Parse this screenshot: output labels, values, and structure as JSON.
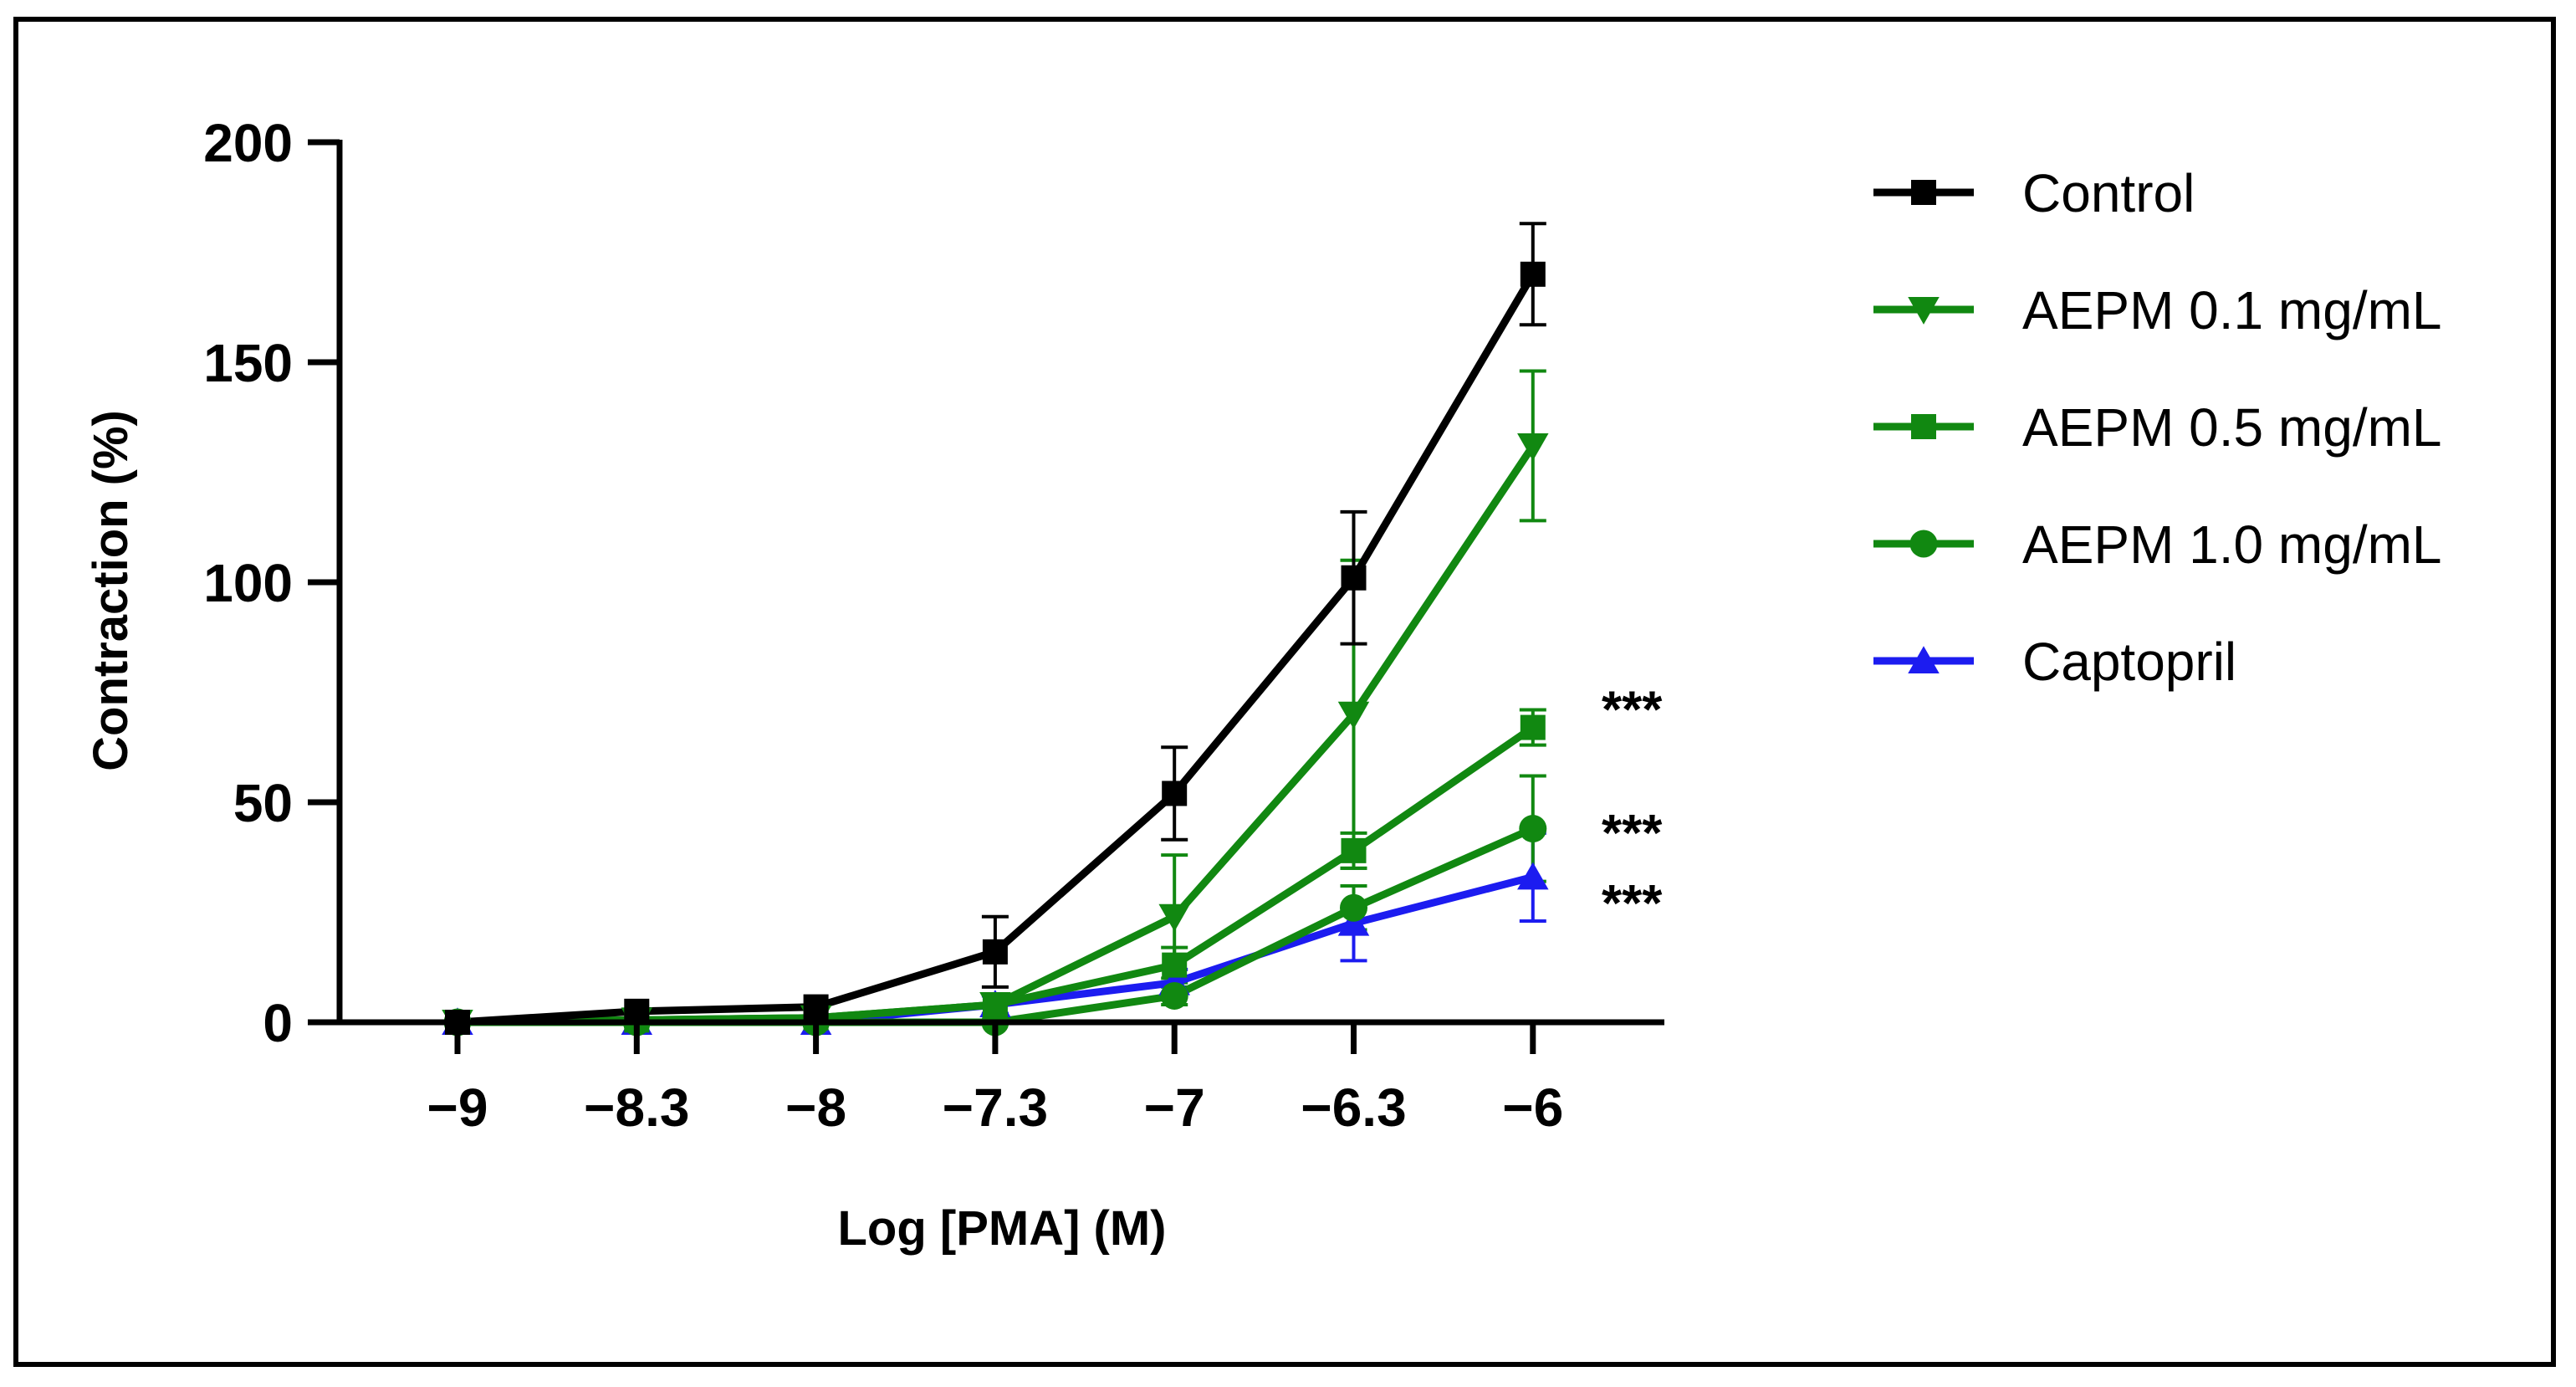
{
  "chart_data": {
    "type": "line",
    "xlabel": "Log [PMA] (M)",
    "ylabel": "Contraction (%)",
    "ylim": [
      0,
      200
    ],
    "yticks": [
      0,
      50,
      100,
      150,
      200
    ],
    "categories": [
      "−9",
      "−8.3",
      "−8",
      "−7.3",
      "−7",
      "−6.3",
      "−6"
    ],
    "x": [
      -9,
      -8.3,
      -8,
      -7.3,
      -7,
      -6.3,
      -6
    ],
    "legend_position": "right",
    "grid": false,
    "series": [
      {
        "name": "Control",
        "color": "#000000",
        "marker": "square",
        "values": [
          0,
          2.5,
          3.5,
          16,
          52,
          101,
          170
        ],
        "errors": [
          0,
          0,
          0,
          8,
          10.5,
          15,
          11.5
        ]
      },
      {
        "name": "AEPM 0.1 mg/mL",
        "color": "#118811",
        "marker": "triangle-down",
        "values": [
          0,
          0.5,
          1,
          4,
          24,
          70,
          131
        ],
        "errors": [
          0,
          0,
          0,
          0,
          14,
          35,
          17
        ]
      },
      {
        "name": "AEPM 0.5 mg/mL",
        "color": "#118811",
        "marker": "square",
        "values": [
          0,
          0.5,
          1,
          4,
          13,
          39,
          67
        ],
        "errors": [
          0,
          0,
          0,
          0,
          4,
          4,
          4
        ]
      },
      {
        "name": "AEPM 1.0 mg/mL",
        "color": "#118811",
        "marker": "circle",
        "values": [
          0,
          0,
          0,
          0,
          6,
          26,
          44
        ],
        "errors": [
          0,
          0,
          0,
          0,
          2,
          5,
          12
        ]
      },
      {
        "name": "Captopril",
        "color": "#1c1cf0",
        "marker": "triangle-up",
        "values": [
          0,
          0,
          0,
          4,
          9,
          22.5,
          33
        ],
        "errors": [
          0,
          0,
          0,
          2,
          3,
          8.5,
          10
        ]
      }
    ],
    "annotations": [
      {
        "text": "***",
        "series": "AEPM 0.5 mg/mL",
        "x": -6,
        "y": 75
      },
      {
        "text": "***",
        "series": "AEPM 1.0 mg/mL",
        "x": -6,
        "y": 47
      },
      {
        "text": "***",
        "series": "Captopril",
        "x": -6,
        "y": 31
      }
    ]
  }
}
